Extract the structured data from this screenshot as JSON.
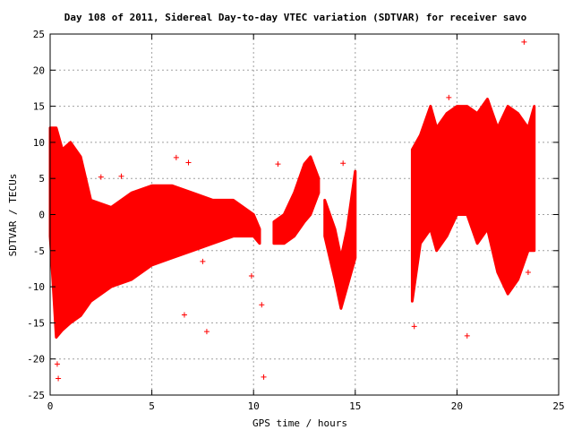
{
  "chart_data": {
    "type": "scatter",
    "title": "Day 108 of 2011, Sidereal Day-to-day VTEC variation (SDTVAR) for receiver savo",
    "xlabel": "GPS time / hours",
    "ylabel": "SDTVAR / TECUs",
    "xlim": [
      0,
      25
    ],
    "ylim": [
      -25,
      25
    ],
    "x_ticks": [
      0,
      5,
      10,
      15,
      20,
      25
    ],
    "y_ticks": [
      -25,
      -20,
      -15,
      -10,
      -5,
      0,
      5,
      10,
      15,
      20,
      25
    ],
    "grid": true,
    "legend": "none",
    "marker": "plus",
    "color": "#ff0000",
    "bands": [
      {
        "x": [
          0.0,
          0.3,
          0.6,
          1.0,
          1.5,
          2.0,
          3.0,
          4.0,
          5.0,
          6.0,
          7.0,
          8.0,
          9.0,
          10.0,
          10.3
        ],
        "upper": [
          12,
          12,
          9,
          10,
          8,
          2,
          1,
          3,
          4,
          4,
          3,
          2,
          2,
          0,
          -2
        ],
        "lower": [
          -3,
          -17,
          -16,
          -15,
          -14,
          -12,
          -10,
          -9,
          -7,
          -6,
          -5,
          -4,
          -3,
          -3,
          -4
        ]
      },
      {
        "x": [
          11.0,
          11.5,
          12.0,
          12.5,
          12.8,
          13.2
        ],
        "upper": [
          -1,
          0,
          3,
          7,
          8,
          5
        ],
        "lower": [
          -4,
          -4,
          -3,
          -1,
          0,
          3
        ]
      },
      {
        "x": [
          13.5,
          14.0,
          14.3,
          14.6,
          15.0
        ],
        "upper": [
          2,
          -2,
          -6,
          -2,
          6
        ],
        "lower": [
          -3,
          -9,
          -13,
          -10,
          -6
        ]
      },
      {
        "x": [
          17.8,
          18.2,
          18.7,
          19.0,
          19.5,
          20.0,
          20.5,
          21.0,
          21.5,
          22.0,
          22.5,
          23.0,
          23.5,
          23.8
        ],
        "upper": [
          9,
          11,
          15,
          12,
          14,
          15,
          15,
          14,
          16,
          12,
          15,
          14,
          12,
          15
        ],
        "lower": [
          -12,
          -4,
          -2,
          -5,
          -3,
          0,
          0,
          -4,
          -2,
          -8,
          -11,
          -9,
          -5,
          -5
        ]
      }
    ],
    "outliers": [
      {
        "x": 0.35,
        "y": -20.7
      },
      {
        "x": 0.4,
        "y": -22.7
      },
      {
        "x": 6.6,
        "y": -13.9
      },
      {
        "x": 7.7,
        "y": -16.2
      },
      {
        "x": 10.5,
        "y": -22.5
      },
      {
        "x": 10.4,
        "y": -12.5
      },
      {
        "x": 17.9,
        "y": -15.5
      },
      {
        "x": 20.5,
        "y": -16.8
      },
      {
        "x": 23.3,
        "y": 23.9
      },
      {
        "x": 19.6,
        "y": 16.2
      },
      {
        "x": 19.0,
        "y": -3.5
      },
      {
        "x": 2.5,
        "y": 5.2
      },
      {
        "x": 3.5,
        "y": 5.3
      },
      {
        "x": 6.2,
        "y": 7.9
      },
      {
        "x": 11.2,
        "y": 7.0
      },
      {
        "x": 14.4,
        "y": 7.1
      },
      {
        "x": 7.5,
        "y": -6.5
      },
      {
        "x": 9.9,
        "y": -8.5
      },
      {
        "x": 23.5,
        "y": -8.0
      },
      {
        "x": 6.8,
        "y": 7.2
      }
    ]
  }
}
